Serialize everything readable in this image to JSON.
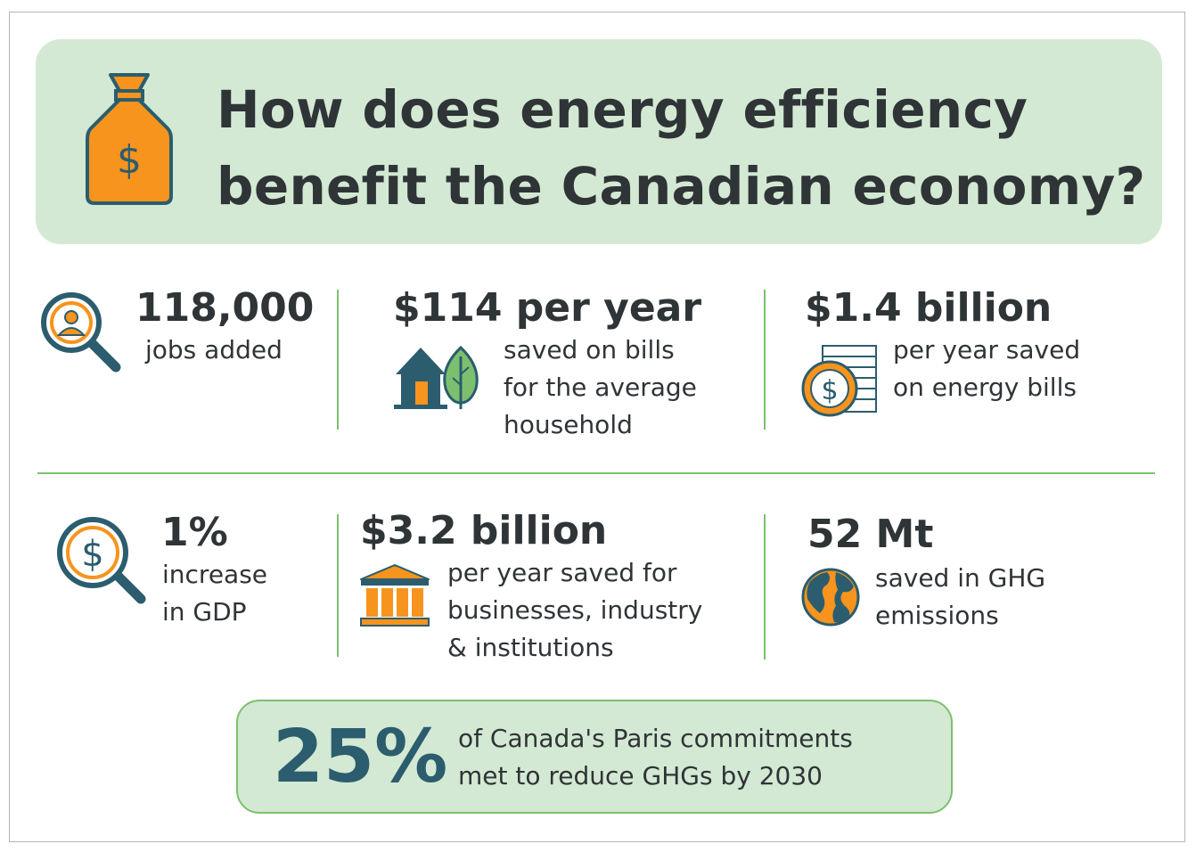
{
  "header": {
    "title_line1": "How does energy efficiency",
    "title_line2": "benefit the Canadian economy?",
    "icon": "money-bag-icon"
  },
  "stats": [
    {
      "id": "jobs",
      "value": "118,000",
      "desc": [
        "jobs added"
      ],
      "icon": "magnifier-person-icon"
    },
    {
      "id": "household",
      "value": "$114 per year",
      "desc": [
        "saved on bills",
        "for the average",
        "household"
      ],
      "icon": "house-leaf-icon"
    },
    {
      "id": "energy-bills",
      "value": "$1.4 billion",
      "desc": [
        "per year saved",
        "on energy bills"
      ],
      "icon": "coin-bill-icon"
    },
    {
      "id": "gdp",
      "value": "1%",
      "desc": [
        "increase",
        "in GDP"
      ],
      "icon": "magnifier-dollar-icon"
    },
    {
      "id": "business",
      "value": "$3.2 billion",
      "desc": [
        "per year saved for",
        "businesses, industry",
        "& institutions"
      ],
      "icon": "institution-building-icon"
    },
    {
      "id": "ghg",
      "value": "52 Mt",
      "desc": [
        "saved in GHG",
        "emissions"
      ],
      "icon": "globe-icon"
    }
  ],
  "callout": {
    "value": "25%",
    "line1": "of Canada's Paris commitments",
    "line2": "met to reduce GHGs by 2030"
  },
  "colors": {
    "accent_green": "#7cc06f",
    "panel_green": "#d3e9d3",
    "orange": "#f7941d",
    "navy": "#2b5d6e",
    "text": "#2f3437"
  }
}
